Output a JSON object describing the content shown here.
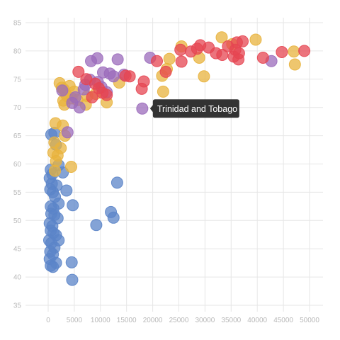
{
  "chart_data": {
    "type": "scatter",
    "title": "",
    "xlabel": "",
    "ylabel": "",
    "xlim": [
      -5000,
      52000
    ],
    "ylim": [
      33,
      86
    ],
    "x_ticks": [
      0,
      5000,
      10000,
      15000,
      20000,
      25000,
      30000,
      35000,
      40000,
      45000,
      50000
    ],
    "y_ticks": [
      35,
      40,
      45,
      50,
      55,
      60,
      65,
      70,
      75,
      80,
      85
    ],
    "grid": true,
    "legend": "none",
    "series": [
      {
        "color": "#5b84c8",
        "points": [
          [
            600,
            65.2
          ],
          [
            1200,
            65.5
          ],
          [
            1500,
            63.4
          ],
          [
            2000,
            59.8
          ],
          [
            500,
            59
          ],
          [
            800,
            58.2
          ],
          [
            2800,
            58.5
          ],
          [
            300,
            57.5
          ],
          [
            700,
            56.5
          ],
          [
            1600,
            56.2
          ],
          [
            400,
            55.5
          ],
          [
            900,
            55
          ],
          [
            1300,
            54.2
          ],
          [
            3500,
            55.3
          ],
          [
            2000,
            53
          ],
          [
            500,
            52.5
          ],
          [
            1000,
            52.1
          ],
          [
            600,
            51.2
          ],
          [
            1200,
            51
          ],
          [
            1800,
            50.4
          ],
          [
            4700,
            52.7
          ],
          [
            300,
            49.5
          ],
          [
            800,
            49
          ],
          [
            500,
            48.2
          ],
          [
            1000,
            47.8
          ],
          [
            1500,
            47.4
          ],
          [
            2000,
            46.5
          ],
          [
            200,
            46.5
          ],
          [
            600,
            46
          ],
          [
            1200,
            45.2
          ],
          [
            400,
            44.5
          ],
          [
            900,
            44
          ],
          [
            300,
            43.2
          ],
          [
            1500,
            42.5
          ],
          [
            500,
            42
          ],
          [
            900,
            41.8
          ],
          [
            4500,
            42.6
          ],
          [
            4600,
            39.5
          ],
          [
            9200,
            49.2
          ],
          [
            12000,
            51.5
          ],
          [
            12500,
            50.5
          ],
          [
            13200,
            56.7
          ]
        ]
      },
      {
        "color": "#e8b33d",
        "points": [
          [
            1400,
            67.2
          ],
          [
            2800,
            66.8
          ],
          [
            3200,
            65
          ],
          [
            1200,
            63.8
          ],
          [
            2400,
            62.8
          ],
          [
            1000,
            62
          ],
          [
            1800,
            61.5
          ],
          [
            1500,
            60.5
          ],
          [
            4400,
            59.5
          ],
          [
            1300,
            58.8
          ],
          [
            2200,
            74.3
          ],
          [
            2600,
            73.5
          ],
          [
            3000,
            73.2
          ],
          [
            4100,
            73.8
          ],
          [
            3300,
            72.5
          ],
          [
            5000,
            72.8
          ],
          [
            3600,
            72
          ],
          [
            2900,
            71.2
          ],
          [
            4500,
            71.6
          ],
          [
            3100,
            70.5
          ],
          [
            7200,
            70.5
          ],
          [
            5600,
            71.3
          ],
          [
            7500,
            72
          ],
          [
            9100,
            72.4
          ],
          [
            11200,
            70.9
          ],
          [
            13600,
            74.4
          ],
          [
            22000,
            72.8
          ],
          [
            21800,
            75.6
          ],
          [
            22700,
            76.8
          ],
          [
            23200,
            78.6
          ],
          [
            25500,
            80.8
          ],
          [
            29800,
            75.5
          ],
          [
            28900,
            78.8
          ],
          [
            33200,
            82.4
          ],
          [
            35200,
            81.2
          ],
          [
            39700,
            82
          ],
          [
            47000,
            79.9
          ],
          [
            47200,
            77.6
          ]
        ]
      },
      {
        "color": "#9b6bbb",
        "points": [
          [
            8200,
            78.2
          ],
          [
            9400,
            78.7
          ],
          [
            13300,
            78.5
          ],
          [
            19500,
            78.8
          ],
          [
            42700,
            78.2
          ],
          [
            3700,
            65.6
          ],
          [
            2700,
            73
          ],
          [
            4600,
            70.8
          ],
          [
            6000,
            70
          ],
          [
            5200,
            71.8
          ],
          [
            6800,
            73.2
          ],
          [
            7100,
            74
          ],
          [
            8000,
            74.9
          ],
          [
            9500,
            74.5
          ],
          [
            10500,
            76.2
          ],
          [
            11800,
            76
          ],
          [
            12500,
            75.5
          ],
          [
            14500,
            75.8
          ],
          [
            11200,
            72.7
          ],
          [
            10200,
            73.6
          ],
          [
            18000,
            69.8
          ]
        ]
      },
      {
        "color": "#e64552",
        "points": [
          [
            5800,
            76.3
          ],
          [
            7300,
            75
          ],
          [
            9000,
            74.2
          ],
          [
            9700,
            73.4
          ],
          [
            10400,
            72.6
          ],
          [
            8400,
            71.8
          ],
          [
            11200,
            72.2
          ],
          [
            14800,
            75.6
          ],
          [
            15600,
            75.5
          ],
          [
            18300,
            74.6
          ],
          [
            17900,
            73.3
          ],
          [
            22500,
            76.3
          ],
          [
            20800,
            78.2
          ],
          [
            25500,
            78.1
          ],
          [
            25300,
            80.2
          ],
          [
            27300,
            79.9
          ],
          [
            28500,
            80.4
          ],
          [
            29100,
            81
          ],
          [
            30700,
            80.6
          ],
          [
            32100,
            79.6
          ],
          [
            33300,
            79.3
          ],
          [
            34400,
            80.8
          ],
          [
            35500,
            79
          ],
          [
            36500,
            79.6
          ],
          [
            37200,
            81.7
          ],
          [
            36100,
            81.5
          ],
          [
            35800,
            80.2
          ],
          [
            36400,
            78.5
          ],
          [
            41100,
            78.8
          ],
          [
            44700,
            79.8
          ],
          [
            49000,
            80
          ]
        ]
      }
    ],
    "tooltip": {
      "label": "Trinidad and Tobago",
      "x": 18000,
      "y": 69.8
    }
  }
}
